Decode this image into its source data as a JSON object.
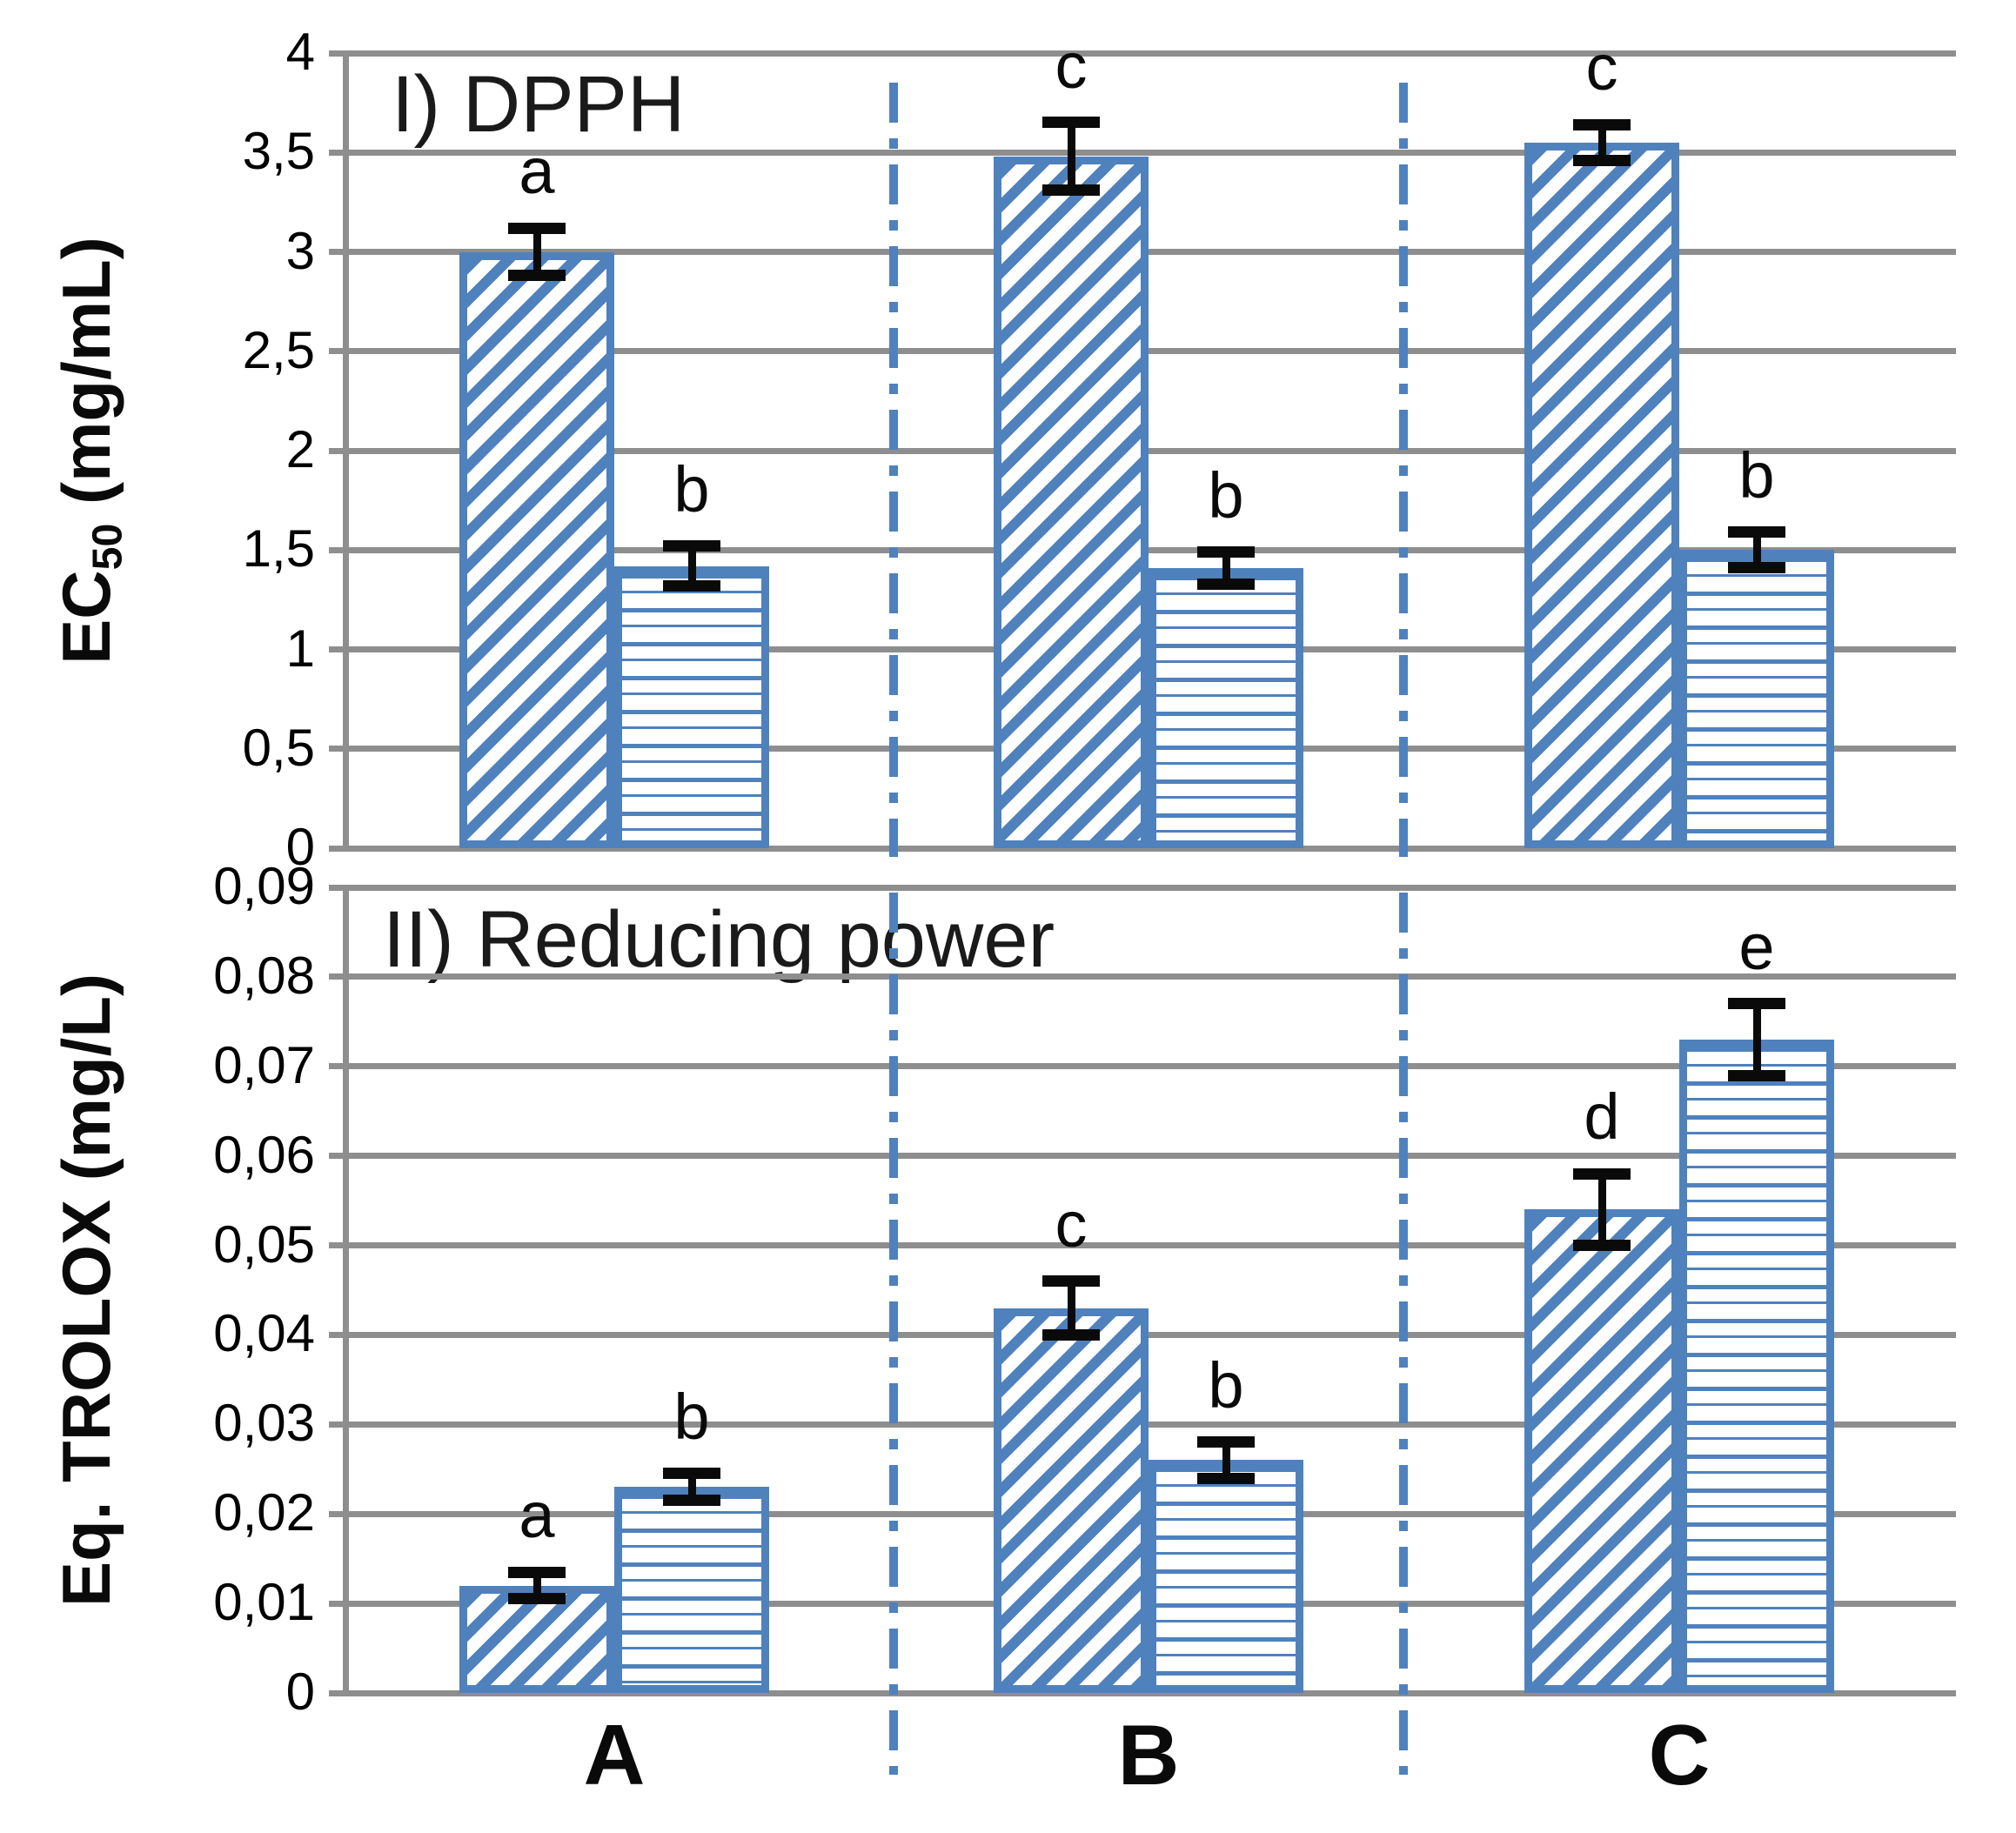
{
  "figure": {
    "background": "#ffffff",
    "panel_titles": {
      "top": "I) DPPH",
      "bottom": "II) Reducing power"
    },
    "x_axis": {
      "categories": [
        "A",
        "B",
        "C"
      ]
    }
  },
  "ylabel_parts": {
    "dpph": {
      "pre": "EC",
      "sub": "50",
      "post": " (mg/mL)"
    },
    "trolox": "Eq. TROLOX (mg/L)"
  },
  "colors": {
    "bar_blue": "#4f81bd",
    "gridline_gray": "#8e8e8e",
    "divider_blue": "#4f81bd",
    "error_bar_black": "#0a0a0a",
    "text_black": "#0a0a0a"
  },
  "chart_data": [
    {
      "type": "bar",
      "title": "I) DPPH",
      "ylabel": "EC50 (mg/mL)",
      "xlabel": "",
      "ylim": [
        0,
        4
      ],
      "grid": true,
      "legend": "none",
      "ytick_labels": [
        "4",
        "3,5",
        "3",
        "2,5",
        "2",
        "1,5",
        "1",
        "0,5",
        "0"
      ],
      "categories": [
        "A",
        "B",
        "C"
      ],
      "series": [
        {
          "name": "diagonal-hatch",
          "values": [
            3.0,
            3.48,
            3.55
          ],
          "errors": [
            0.12,
            0.17,
            0.09
          ],
          "letters": [
            "a",
            "c",
            "c"
          ]
        },
        {
          "name": "horizontal-stripe",
          "values": [
            1.42,
            1.41,
            1.5
          ],
          "errors": [
            0.1,
            0.08,
            0.09
          ],
          "letters": [
            "b",
            "b",
            "b"
          ]
        }
      ]
    },
    {
      "type": "bar",
      "title": "II) Reducing power",
      "ylabel": "Eq. TROLOX (mg/L)",
      "xlabel": "",
      "ylim": [
        0,
        0.09
      ],
      "grid": true,
      "legend": "none",
      "ytick_labels": [
        "0,09",
        "0,08",
        "0,07",
        "0,06",
        "0,05",
        "0,04",
        "0,03",
        "0,02",
        "0,01",
        "0"
      ],
      "categories": [
        "A",
        "B",
        "C"
      ],
      "series": [
        {
          "name": "diagonal-hatch",
          "values": [
            0.012,
            0.043,
            0.054
          ],
          "errors": [
            0.0015,
            0.003,
            0.004
          ],
          "letters": [
            "a",
            "c",
            "d"
          ]
        },
        {
          "name": "horizontal-stripe",
          "values": [
            0.023,
            0.026,
            0.073
          ],
          "errors": [
            0.0015,
            0.002,
            0.004
          ],
          "letters": [
            "b",
            "b",
            "e"
          ]
        }
      ]
    }
  ]
}
